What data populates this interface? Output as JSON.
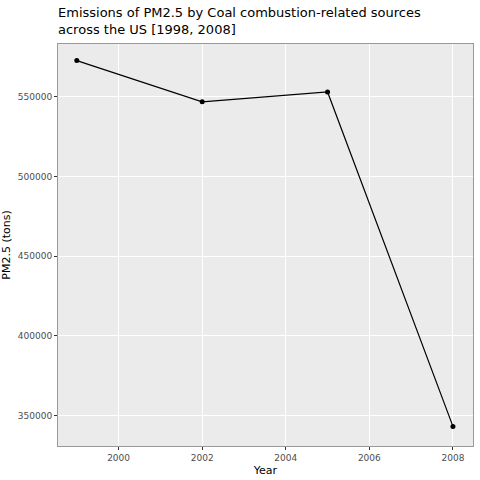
{
  "chart_data": {
    "type": "line",
    "title": "Emissions of PM2.5 by Coal combustion-related sources\nacross the US [1998, 2008]",
    "x_label": "Year",
    "y_label": "PM2.5 (tons)",
    "x": [
      1999,
      2002,
      2005,
      2008
    ],
    "values": [
      572800,
      546900,
      553100,
      343200
    ],
    "color": "#000000",
    "marker": "circle",
    "line_style": "solid",
    "xlim": [
      1998.55,
      2008.48
    ],
    "xticks": [
      2000,
      2002,
      2004,
      2006,
      2008
    ],
    "ylim": [
      330900,
      583200
    ],
    "yticks": [
      350000,
      400000,
      450000,
      500000,
      550000
    ],
    "grid": true
  }
}
